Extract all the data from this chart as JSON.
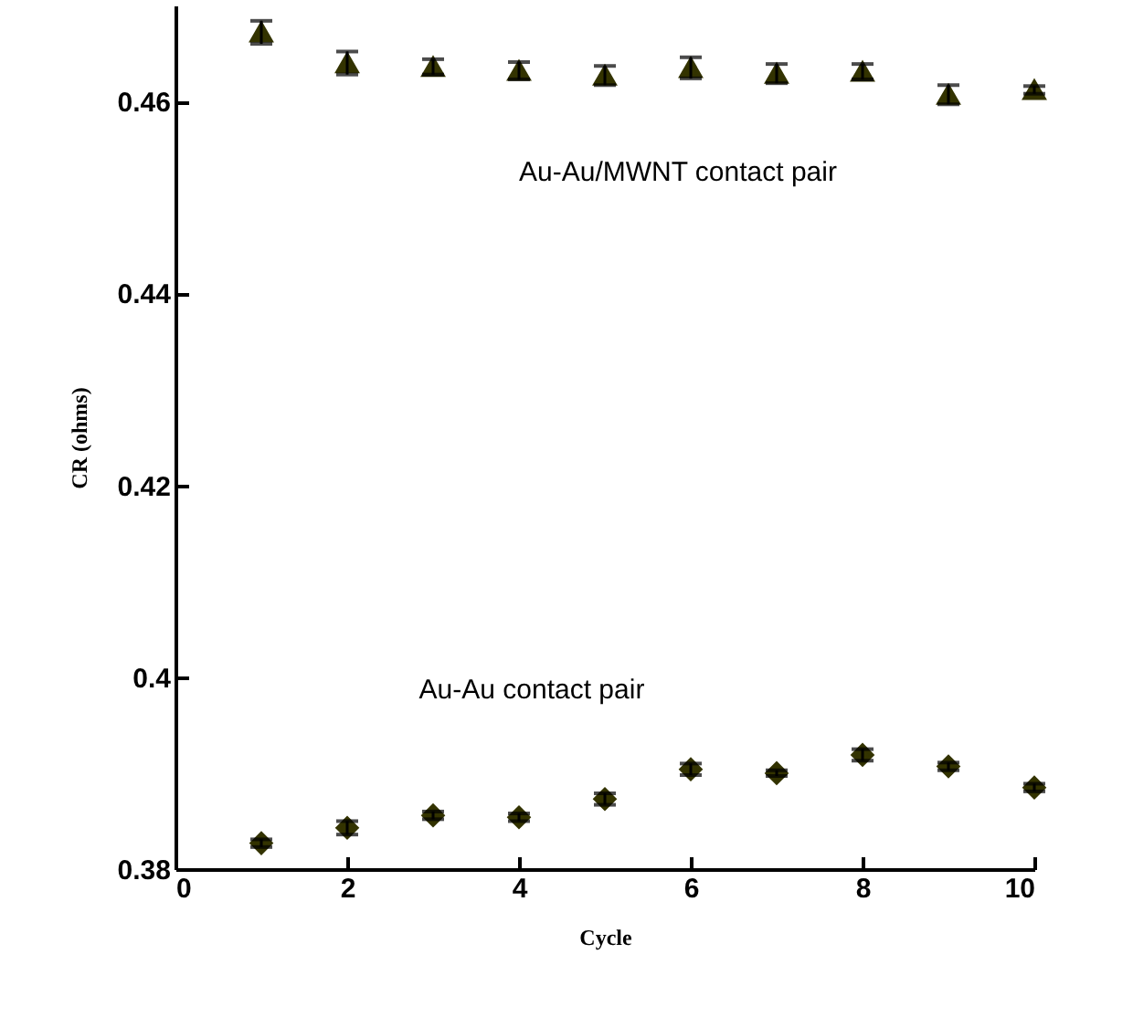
{
  "chart_data": {
    "type": "scatter",
    "xlabel": "Cycle",
    "ylabel": "CR (ohms)",
    "x": [
      1,
      2,
      3,
      4,
      5,
      6,
      7,
      8,
      9,
      10
    ],
    "series": [
      {
        "name": "Au-Au/MWNT contact pair",
        "color": "#333300",
        "marker": "triangle",
        "values": [
          0.4672,
          0.464,
          0.4636,
          0.4632,
          0.4627,
          0.4635,
          0.4629,
          0.4631,
          0.4607,
          0.4612
        ],
        "errors": [
          0.0012,
          0.0012,
          0.0008,
          0.0009,
          0.001,
          0.0011,
          0.001,
          0.0008,
          0.001,
          0.0004
        ]
      },
      {
        "name": "Au-Au contact pair",
        "color": "#333300",
        "marker": "diamond",
        "values": [
          0.3827,
          0.3843,
          0.3856,
          0.3854,
          0.3873,
          0.3904,
          0.39,
          0.3919,
          0.3907,
          0.3885
        ],
        "errors": [
          0.0004,
          0.0007,
          0.0004,
          0.0004,
          0.0006,
          0.0006,
          0.0003,
          0.0006,
          0.0004,
          0.0004
        ]
      }
    ],
    "xlim": [
      0,
      10
    ],
    "xticks": [
      0,
      2,
      4,
      6,
      8,
      10
    ],
    "ylim": [
      0.38,
      0.47
    ],
    "yticks": [
      0.38,
      0.4,
      0.42,
      0.44,
      0.46
    ],
    "grid": false,
    "legend": false
  }
}
